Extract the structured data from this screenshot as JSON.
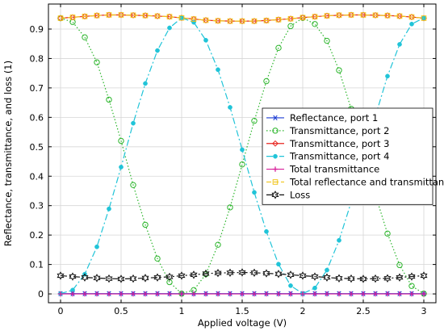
{
  "chart_data": {
    "type": "line",
    "xlabel": "Applied voltage (V)",
    "ylabel": "Reflectance, transmittance, and loss (1)",
    "xlim": [
      -0.1,
      3.1
    ],
    "ylim": [
      -0.03,
      0.985
    ],
    "xticks": [
      0,
      0.5,
      1,
      1.5,
      2,
      2.5,
      3
    ],
    "xtick_labels": [
      "0",
      "0.5",
      "1",
      "1.5",
      "2",
      "2.5",
      "3"
    ],
    "yticks": [
      0,
      0.1,
      0.2,
      0.3,
      0.4,
      0.5,
      0.6,
      0.7,
      0.8,
      0.9
    ],
    "ytick_labels": [
      "0",
      "0.1",
      "0.2",
      "0.3",
      "0.4",
      "0.5",
      "0.6",
      "0.7",
      "0.8",
      "0.9"
    ],
    "grid": true,
    "legend_position": "right",
    "x": [
      0,
      0.1,
      0.2,
      0.3,
      0.4,
      0.5,
      0.6,
      0.7,
      0.8,
      0.9,
      1.0,
      1.1,
      1.2,
      1.3,
      1.4,
      1.5,
      1.6,
      1.7,
      1.8,
      1.9,
      2.0,
      2.1,
      2.2,
      2.3,
      2.4,
      2.5,
      2.6,
      2.7,
      2.8,
      2.9,
      3.0
    ],
    "series": [
      {
        "name": "Reflectance, port 1",
        "color": "#1f3fd4",
        "line_style": "solid",
        "marker": "asterisk",
        "values": [
          0.001,
          0.001,
          0.001,
          0.001,
          0.001,
          0.001,
          0.001,
          0.001,
          0.001,
          0.001,
          0.001,
          0.001,
          0.001,
          0.001,
          0.001,
          0.001,
          0.001,
          0.001,
          0.001,
          0.001,
          0.001,
          0.001,
          0.001,
          0.001,
          0.001,
          0.001,
          0.001,
          0.001,
          0.001,
          0.001,
          0.001
        ]
      },
      {
        "name": "Transmittance, port 2",
        "color": "#2bb52b",
        "line_style": "dotted",
        "marker": "open-circle",
        "values": [
          0.937,
          0.924,
          0.872,
          0.787,
          0.66,
          0.52,
          0.37,
          0.235,
          0.12,
          0.04,
          0.001,
          0.013,
          0.067,
          0.167,
          0.294,
          0.44,
          0.588,
          0.723,
          0.836,
          0.91,
          0.938,
          0.917,
          0.86,
          0.76,
          0.629,
          0.481,
          0.337,
          0.205,
          0.098,
          0.027,
          0.001
        ]
      },
      {
        "name": "Transmittance, port 3",
        "color": "#e8251f",
        "line_style": "solid",
        "marker": "open-diamond",
        "values": [
          0.937,
          0.94,
          0.943,
          0.946,
          0.948,
          0.948,
          0.947,
          0.946,
          0.944,
          0.942,
          0.938,
          0.934,
          0.93,
          0.928,
          0.927,
          0.927,
          0.927,
          0.929,
          0.932,
          0.935,
          0.939,
          0.942,
          0.945,
          0.947,
          0.948,
          0.948,
          0.947,
          0.946,
          0.944,
          0.941,
          0.937
        ]
      },
      {
        "name": "Transmittance, port 4",
        "color": "#20c4d8",
        "line_style": "dashdot",
        "marker": "filled-circle",
        "values": [
          0.001,
          0.013,
          0.067,
          0.16,
          0.289,
          0.431,
          0.58,
          0.715,
          0.827,
          0.904,
          0.938,
          0.923,
          0.862,
          0.762,
          0.634,
          0.49,
          0.345,
          0.212,
          0.101,
          0.028,
          0.001,
          0.02,
          0.081,
          0.182,
          0.312,
          0.456,
          0.604,
          0.74,
          0.848,
          0.917,
          0.938
        ]
      },
      {
        "name": "Total transmittance",
        "color": "#d81f9a",
        "line_style": "solid",
        "marker": "plus",
        "values": [
          0.0,
          0.0,
          0.0,
          0.0,
          0.0,
          0.0,
          0.0,
          0.0,
          0.0,
          0.0,
          0.0,
          0.0,
          0.0,
          0.0,
          0.0,
          0.0,
          0.0,
          0.0,
          0.0,
          0.0,
          0.0,
          0.0,
          0.0,
          0.0,
          0.0,
          0.0,
          0.0,
          0.0,
          0.0,
          0.0,
          0.0
        ]
      },
      {
        "name": "Total reflectance and transmittance",
        "color": "#f0c419",
        "line_style": "dashed",
        "marker": "open-square",
        "values": [
          0.937,
          0.94,
          0.943,
          0.946,
          0.948,
          0.948,
          0.947,
          0.946,
          0.944,
          0.942,
          0.938,
          0.934,
          0.93,
          0.928,
          0.927,
          0.927,
          0.927,
          0.929,
          0.932,
          0.935,
          0.939,
          0.942,
          0.945,
          0.947,
          0.948,
          0.948,
          0.947,
          0.946,
          0.944,
          0.941,
          0.937
        ]
      },
      {
        "name": "Loss",
        "color": "#111111",
        "line_style": "dashdot",
        "marker": "hexagram",
        "values": [
          0.062,
          0.059,
          0.056,
          0.054,
          0.052,
          0.051,
          0.052,
          0.054,
          0.056,
          0.058,
          0.062,
          0.065,
          0.069,
          0.071,
          0.072,
          0.073,
          0.072,
          0.07,
          0.068,
          0.065,
          0.062,
          0.059,
          0.056,
          0.053,
          0.052,
          0.051,
          0.052,
          0.053,
          0.056,
          0.059,
          0.062
        ]
      }
    ]
  }
}
